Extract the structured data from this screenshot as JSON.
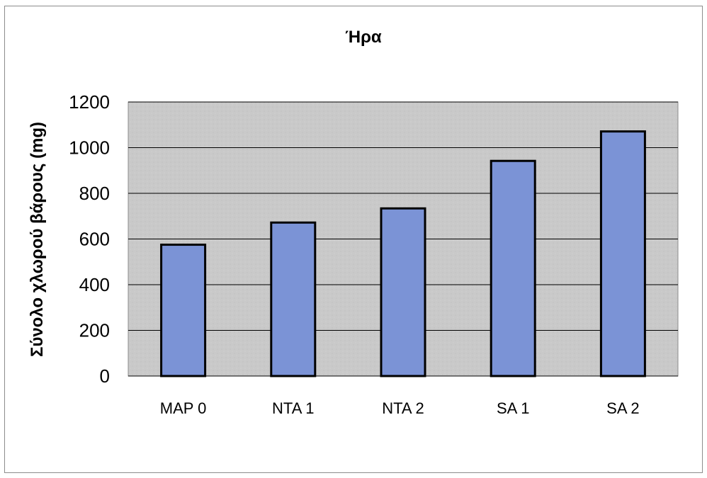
{
  "chart_data": {
    "type": "bar",
    "title": "Ήρα",
    "xlabel": "",
    "ylabel": "Σύνολο χλωρού βάρους (mg)",
    "categories": [
      "MAP 0",
      "NTA 1",
      "NTA 2",
      "SA 1",
      "SA 2"
    ],
    "values": [
      575,
      672,
      734,
      942,
      1071
    ],
    "ylim": [
      0,
      1200
    ],
    "yticks": [
      0,
      200,
      400,
      600,
      800,
      1000,
      1200
    ],
    "grid": true,
    "legend": "none",
    "colors": {
      "bar_fill": "#7b93d6",
      "bar_stroke": "#000000",
      "plot_background": "#c8c8c8",
      "gridline": "#000000"
    }
  }
}
